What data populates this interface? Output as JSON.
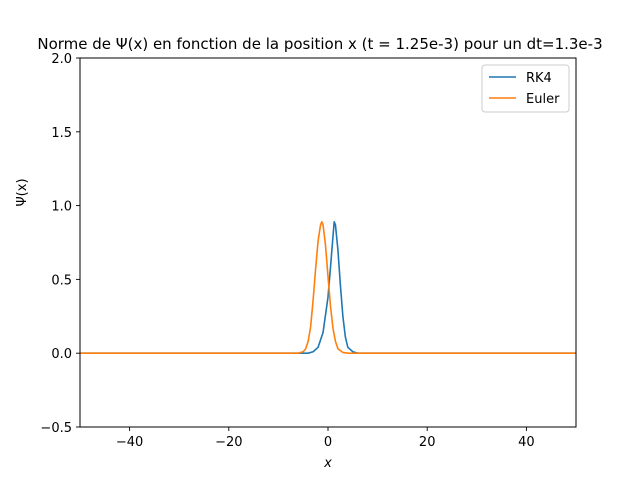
{
  "chart_data": {
    "type": "line",
    "title": "Norme de Ψ(x) en fonction de la position x (t = 1.25e-3) pour un dt=1.3e-3",
    "xlabel": "x",
    "ylabel": "Ψ(x)",
    "xlim": [
      -50,
      50
    ],
    "ylim": [
      -0.5,
      2.0
    ],
    "xticks": [
      -40,
      -20,
      0,
      20,
      40
    ],
    "xtick_labels": [
      "−40",
      "−20",
      "0",
      "20",
      "40"
    ],
    "yticks": [
      -0.5,
      0.0,
      0.5,
      1.0,
      1.5,
      2.0
    ],
    "ytick_labels": [
      "−0.5",
      "0.0",
      "0.5",
      "1.0",
      "1.5",
      "2.0"
    ],
    "grid": false,
    "legend_position": "top-right",
    "series": [
      {
        "name": "RK4",
        "color": "#1f77b4",
        "x": [
          -50,
          -6,
          -4,
          -3,
          -2,
          -1,
          0,
          0.5,
          1,
          1.25,
          1.5,
          2,
          2.5,
          3,
          3.5,
          4,
          5,
          6,
          7,
          50
        ],
        "y": [
          0,
          0,
          0.0,
          0.01,
          0.04,
          0.14,
          0.38,
          0.58,
          0.79,
          0.89,
          0.87,
          0.7,
          0.46,
          0.25,
          0.11,
          0.04,
          0.01,
          0,
          0,
          0
        ]
      },
      {
        "name": "Euler",
        "color": "#ff7f0e",
        "x": [
          -50,
          -8,
          -6,
          -5,
          -4.5,
          -4,
          -3.5,
          -3,
          -2.5,
          -2,
          -1.5,
          -1.25,
          -1,
          -0.5,
          0,
          0.5,
          1,
          1.5,
          2,
          3,
          4,
          5,
          50
        ],
        "y": [
          0,
          0,
          0.0,
          0.01,
          0.03,
          0.08,
          0.18,
          0.36,
          0.57,
          0.76,
          0.87,
          0.89,
          0.87,
          0.73,
          0.52,
          0.32,
          0.17,
          0.08,
          0.03,
          0.005,
          0,
          0,
          0
        ]
      }
    ]
  }
}
